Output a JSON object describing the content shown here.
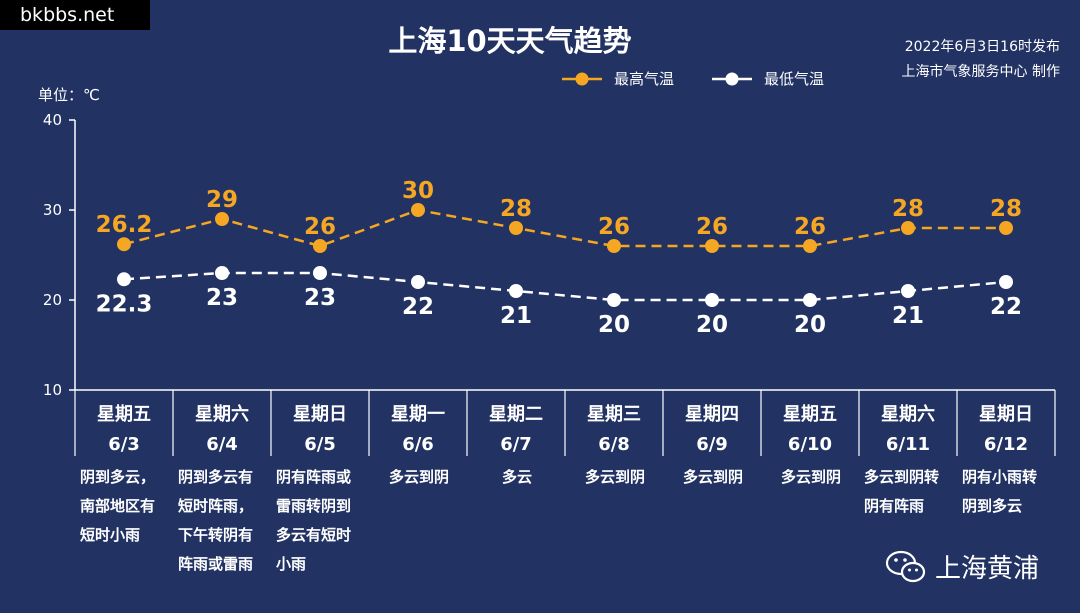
{
  "watermark": "bkbbs.net",
  "title": "上海10天天气趋势",
  "publish_line1": "2022年6月3日16时发布",
  "publish_line2": "上海市气象服务中心 制作",
  "legend": {
    "high": "最高气温",
    "low": "最低气温"
  },
  "unit_label": "单位：℃",
  "brand": "上海黄浦",
  "colors": {
    "background": "#213263",
    "high": "#f5a623",
    "low": "#ffffff",
    "axis": "#ffffff"
  },
  "chart_data": {
    "type": "line",
    "categories": [
      "6/3",
      "6/4",
      "6/5",
      "6/6",
      "6/7",
      "6/8",
      "6/9",
      "6/10",
      "6/11",
      "6/12"
    ],
    "series": [
      {
        "name": "最高气温",
        "values": [
          26.2,
          29,
          26,
          30,
          28,
          26,
          26,
          26,
          28,
          28
        ]
      },
      {
        "name": "最低气温",
        "values": [
          22.3,
          23,
          23,
          22,
          21,
          20,
          20,
          20,
          21,
          22
        ]
      }
    ],
    "high_labels": [
      "26.2",
      "29",
      "26",
      "30",
      "28",
      "26",
      "26",
      "26",
      "28",
      "28"
    ],
    "low_labels": [
      "22.3",
      "23",
      "23",
      "22",
      "21",
      "20",
      "20",
      "20",
      "21",
      "22"
    ],
    "yticks": [
      "10",
      "20",
      "30",
      "40"
    ],
    "ylim": [
      10,
      40
    ],
    "grid": false,
    "legend_position": "top-center",
    "line_style": "dashed"
  },
  "days": [
    {
      "weekday": "星期五",
      "date": "6/3",
      "weather": [
        "阴到多云，",
        "南部地区有",
        "短时小雨"
      ]
    },
    {
      "weekday": "星期六",
      "date": "6/4",
      "weather": [
        "阴到多云有",
        "短时阵雨，",
        "下午转阴有",
        "阵雨或雷雨"
      ]
    },
    {
      "weekday": "星期日",
      "date": "6/5",
      "weather": [
        "阴有阵雨或",
        "雷雨转阴到",
        "多云有短时",
        "小雨"
      ]
    },
    {
      "weekday": "星期一",
      "date": "6/6",
      "weather": [
        "多云到阴"
      ]
    },
    {
      "weekday": "星期二",
      "date": "6/7",
      "weather": [
        "多云"
      ]
    },
    {
      "weekday": "星期三",
      "date": "6/8",
      "weather": [
        "多云到阴"
      ]
    },
    {
      "weekday": "星期四",
      "date": "6/9",
      "weather": [
        "多云到阴"
      ]
    },
    {
      "weekday": "星期五",
      "date": "6/10",
      "weather": [
        "多云到阴"
      ]
    },
    {
      "weekday": "星期六",
      "date": "6/11",
      "weather": [
        "多云到阴转",
        "阴有阵雨"
      ]
    },
    {
      "weekday": "星期日",
      "date": "6/12",
      "weather": [
        "阴有小雨转",
        "阴到多云"
      ]
    }
  ]
}
